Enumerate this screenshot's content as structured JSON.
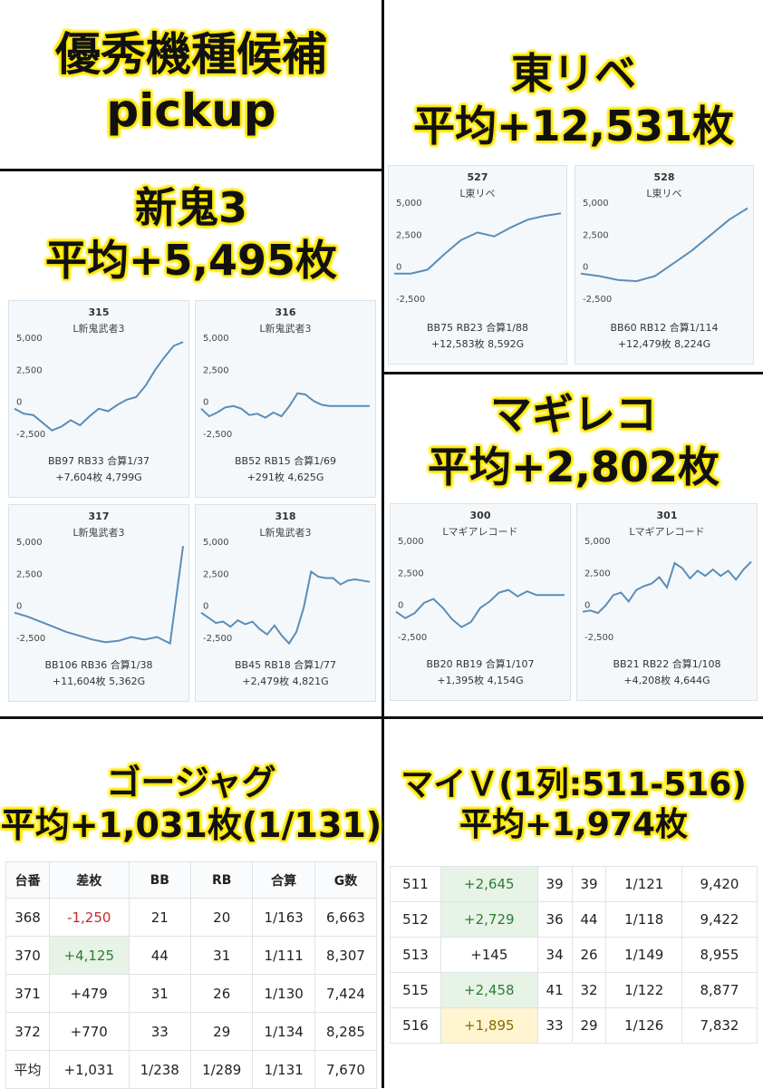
{
  "pickup": {
    "line1": "優秀機種候補",
    "line2": "pickup"
  },
  "higashi": {
    "name": "東リベ",
    "avg": "平均+12,531枚",
    "machines": [
      {
        "num": "527",
        "model": "L東リベ",
        "stats1": "BB75 RB23 合算1/88",
        "stats2": "+12,583枚 8,592G",
        "series": [
          0,
          0,
          300,
          1500,
          2600,
          3200,
          2900,
          3600,
          4200,
          4500,
          4700
        ]
      },
      {
        "num": "528",
        "model": "L東リベ",
        "stats1": "BB60 RB12 合算1/114",
        "stats2": "+12,479枚 8,224G",
        "series": [
          0,
          -200,
          -500,
          -600,
          -200,
          800,
          1800,
          3000,
          4200,
          5100
        ]
      }
    ]
  },
  "shinoni": {
    "name": "新鬼3",
    "avg": "平均+5,495枚",
    "machines": [
      {
        "num": "315",
        "model": "L新鬼武者3",
        "stats1": "BB97 RB33 合算1/37",
        "stats2": "+7,604枚 4,799G",
        "series": [
          0,
          -400,
          -500,
          -1100,
          -1700,
          -1400,
          -900,
          -1300,
          -600,
          0,
          -200,
          300,
          700,
          900,
          1800,
          3000,
          4000,
          4900,
          5200
        ]
      },
      {
        "num": "316",
        "model": "L新鬼武者3",
        "stats1": "BB52 RB15 合算1/69",
        "stats2": "+291枚 4,625G",
        "series": [
          0,
          -600,
          -300,
          100,
          200,
          0,
          -500,
          -400,
          -700,
          -300,
          -600,
          200,
          1200,
          1100,
          600,
          300,
          200,
          200,
          200,
          200,
          200,
          200
        ]
      },
      {
        "num": "317",
        "model": "L新鬼武者3",
        "stats1": "BB106 RB36 合算1/38",
        "stats2": "+11,604枚 5,362G",
        "series": [
          0,
          -300,
          -700,
          -1100,
          -1500,
          -1800,
          -2100,
          -2300,
          -2200,
          -1900,
          -2100,
          -1900,
          -2400,
          5200
        ]
      },
      {
        "num": "318",
        "model": "L新鬼武者3",
        "stats1": "BB45 RB18 合算1/77",
        "stats2": "+2,479枚 4,821G",
        "series": [
          0,
          -400,
          -800,
          -700,
          -1100,
          -600,
          -900,
          -700,
          -1300,
          -1700,
          -1000,
          -1800,
          -2400,
          -1500,
          400,
          3200,
          2800,
          2700,
          2700,
          2200,
          2500,
          2600,
          2500,
          2400
        ]
      }
    ]
  },
  "magireco": {
    "name": "マギレコ",
    "avg": "平均+2,802枚",
    "machines": [
      {
        "num": "300",
        "model": "Lマギアレコード",
        "stats1": "BB20 RB19 合算1/107",
        "stats2": "+1,395枚 4,154G",
        "series": [
          0,
          -500,
          -100,
          700,
          1000,
          300,
          -600,
          -1200,
          -800,
          300,
          800,
          1500,
          1700,
          1200,
          1600,
          1300,
          1300,
          1300,
          1300
        ]
      },
      {
        "num": "301",
        "model": "Lマギアレコード",
        "stats1": "BB21 RB22 合算1/108",
        "stats2": "+4,208枚 4,644G",
        "series": [
          0,
          100,
          -100,
          500,
          1300,
          1500,
          800,
          1700,
          2000,
          2200,
          2700,
          1900,
          3800,
          3400,
          2600,
          3200,
          2800,
          3300,
          2800,
          3200,
          2500,
          3300,
          3900
        ]
      }
    ]
  },
  "gojag": {
    "name": "ゴージャグ",
    "avg": "平均+1,031枚(1/131)",
    "headers": [
      "台番",
      "差枚",
      "BB",
      "RB",
      "合算",
      "G数"
    ],
    "rows": [
      [
        "368",
        "-1,250",
        "21",
        "20",
        "1/163",
        "6,663"
      ],
      [
        "370",
        "+4,125",
        "44",
        "31",
        "1/111",
        "8,307"
      ],
      [
        "371",
        "+479",
        "31",
        "26",
        "1/130",
        "7,424"
      ],
      [
        "372",
        "+770",
        "33",
        "29",
        "1/134",
        "8,285"
      ],
      [
        "平均",
        "+1,031",
        "1/238",
        "1/289",
        "1/131",
        "7,670"
      ]
    ]
  },
  "myv": {
    "name": "マイＶ(1列:511-516)",
    "avg": "平均+1,974枚",
    "rows": [
      [
        "511",
        "+2,645",
        "39",
        "39",
        "1/121",
        "9,420"
      ],
      [
        "512",
        "+2,729",
        "36",
        "44",
        "1/118",
        "9,422"
      ],
      [
        "513",
        "+145",
        "34",
        "26",
        "1/149",
        "8,955"
      ],
      [
        "515",
        "+2,458",
        "41",
        "32",
        "1/122",
        "8,877"
      ],
      [
        "516",
        "+1,895",
        "33",
        "29",
        "1/126",
        "7,832"
      ]
    ]
  },
  "axis": {
    "t5000": "5,000",
    "t2500": "2,500",
    "t0": "0",
    "tm2500": "-2,500"
  },
  "colors": {
    "line": "#5b8db8",
    "highlight": "#ffe800"
  }
}
